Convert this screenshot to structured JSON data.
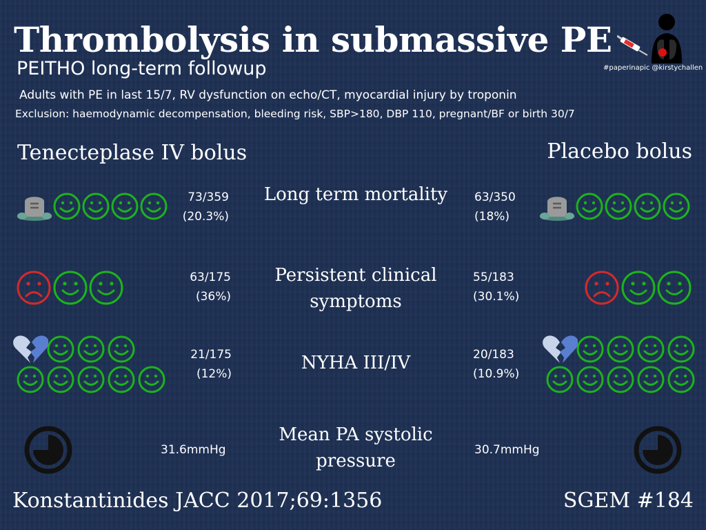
{
  "header": {
    "title": "Thrombolysis in submassive PE",
    "subtitle": "PEITHO long-term followup",
    "inclusion": "Adults with PE in last 15/7, RV dysfunction on echo/CT, myocardial injury by troponin",
    "exclusion": "Exclusion: haemodynamic decompensation, bleeding risk, SBP>180, DBP 110, pregnant/BF or birth 30/7",
    "hashtag": "#paperinapic @kirstychallen"
  },
  "arms": {
    "treatment": "Tenecteplase IV bolus",
    "control": "Placebo bolus"
  },
  "outcomes": {
    "mortality": {
      "label": "Long term mortality",
      "treatment_count": "73/359",
      "treatment_pct": "(20.3%)",
      "control_count": "63/350",
      "control_pct": "(18%)"
    },
    "symptoms": {
      "label": "Persistent clinical symptoms",
      "treatment_count": "63/175",
      "treatment_pct": "(36%)",
      "control_count": "55/183",
      "control_pct": "(30.1%)"
    },
    "nyha": {
      "label": "NYHA III/IV",
      "treatment_count": "21/175",
      "treatment_pct": "(12%)",
      "control_count": "20/183",
      "control_pct": "(10.9%)"
    },
    "pa_pressure": {
      "label": "Mean PA systolic pressure",
      "treatment_value": "31.6mmHg",
      "control_value": "30.7mmHg"
    }
  },
  "footer": {
    "reference": "Konstantinides JACC 2017;69:1356",
    "episode": "SGEM #184"
  },
  "icons": {
    "gravestone": "gravestone-icon",
    "happy_face": "happy-face-icon",
    "sad_face": "sad-face-icon",
    "broken_heart": "broken-heart-icon",
    "gauge": "pressure-gauge-icon",
    "logo": "lungs-syringe-logo"
  },
  "colors": {
    "background": "#1d2f52",
    "happy": "#1db31d",
    "sad": "#d42a2a",
    "heart": "#6f8fd0",
    "gauge": "#111111"
  }
}
